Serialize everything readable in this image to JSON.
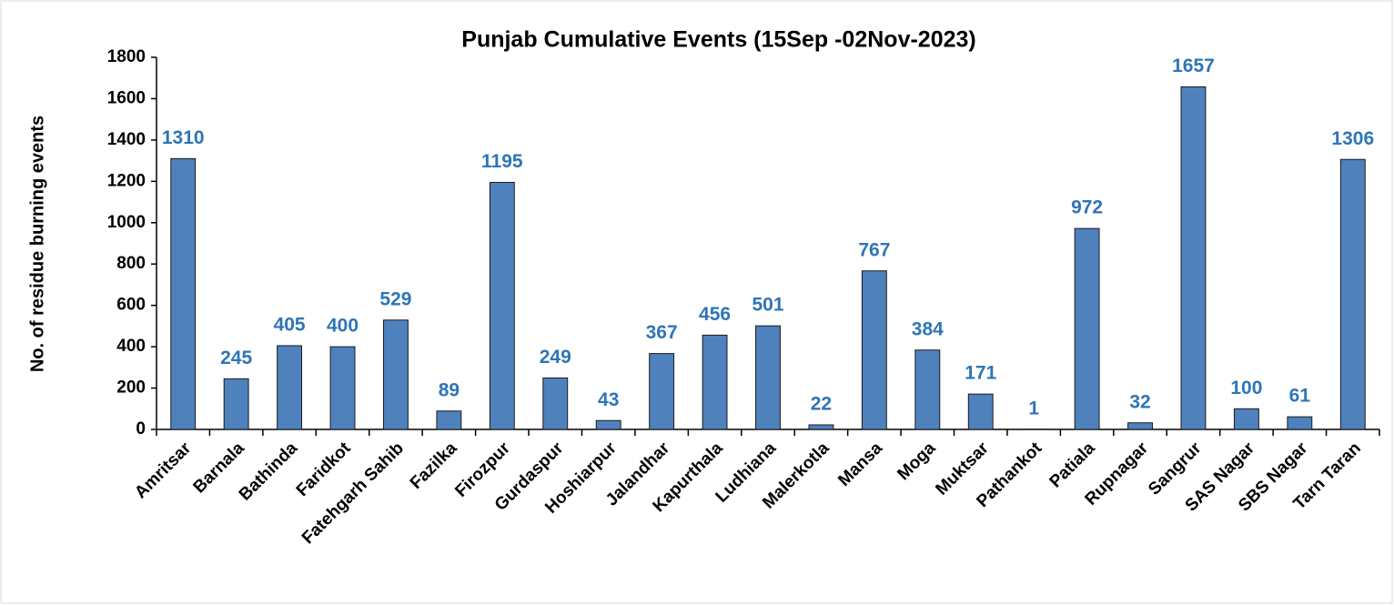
{
  "chart_data": {
    "type": "bar",
    "title": "Punjab Cumulative Events (15Sep -02Nov-2023)",
    "y_label": "No. of residue burning events",
    "categories": [
      "Amritsar",
      "Barnala",
      "Bathinda",
      "Faridkot",
      "Fatehgarh Sahib",
      "Fazilka",
      "Firozpur",
      "Gurdaspur",
      "Hoshiarpur",
      "Jalandhar",
      "Kapurthala",
      "Ludhiana",
      "Malerkotla",
      "Mansa",
      "Moga",
      "Muktsar",
      "Pathankot",
      "Patiala",
      "Rupnagar",
      "Sangrur",
      "SAS Nagar",
      "SBS Nagar",
      "Tarn Taran"
    ],
    "values": [
      1310,
      245,
      405,
      400,
      529,
      89,
      1195,
      249,
      43,
      367,
      456,
      501,
      22,
      767,
      384,
      171,
      1,
      972,
      32,
      1657,
      100,
      61,
      1306
    ],
    "color": "#4f81bd",
    "label_color": "#2e75b6",
    "ylim": [
      0,
      1800
    ],
    "yticks": [
      0,
      200,
      400,
      600,
      800,
      1000,
      1200,
      1400,
      1600,
      1800
    ],
    "grid": false
  }
}
